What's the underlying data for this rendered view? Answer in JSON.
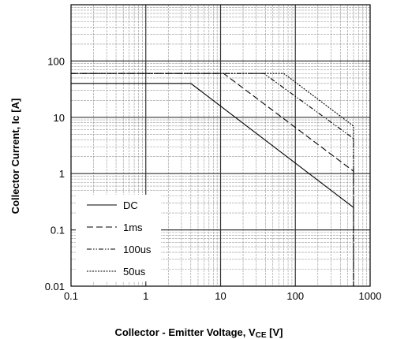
{
  "chart_data": {
    "type": "line",
    "xscale": "log",
    "yscale": "log",
    "xlim": [
      0.1,
      1000
    ],
    "ylim": [
      0.01,
      1000
    ],
    "xlabel": "Collector - Emitter Voltage, V",
    "xlabel_sub": "CE",
    "xlabel_unit": " [V]",
    "ylabel": "Collector Current, Ic [A]",
    "xticks": [
      0.1,
      1,
      10,
      100,
      1000
    ],
    "xtick_labels": [
      "0.1",
      "1",
      "10",
      "100",
      "1000"
    ],
    "yticks": [
      0.01,
      0.1,
      1,
      10,
      100
    ],
    "ytick_labels": [
      "0.01",
      "0.1",
      "1",
      "10",
      "100"
    ],
    "grid": true,
    "legend_position": "bottom-left",
    "series": [
      {
        "name": "DC",
        "dash": "solid",
        "x": [
          0.1,
          4,
          600
        ],
        "y": [
          40,
          40,
          0.25
        ]
      },
      {
        "name": "1ms",
        "dash": "dashed",
        "x": [
          0.1,
          11,
          600,
          600
        ],
        "y": [
          60,
          60,
          1.1,
          0.01
        ]
      },
      {
        "name": "100us",
        "dash": "dash-dot-dot",
        "x": [
          0.1,
          38,
          600,
          600
        ],
        "y": [
          60,
          60,
          4.2,
          0.01
        ]
      },
      {
        "name": "50us",
        "dash": "dotted",
        "x": [
          0.1,
          70,
          600,
          600
        ],
        "y": [
          60,
          60,
          7,
          0.01
        ]
      }
    ]
  }
}
